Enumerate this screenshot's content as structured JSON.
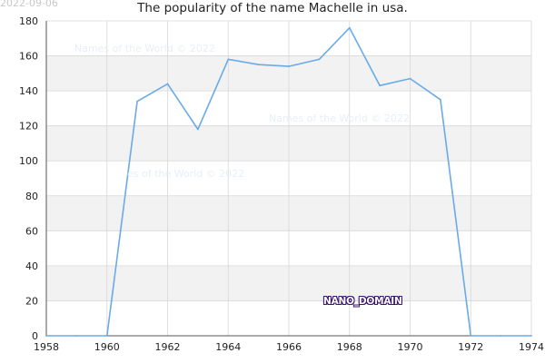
{
  "date_stamp": "2022-09-06",
  "watermarks": [
    "Names of the World © 2022",
    "Names of the World © 2022",
    "es of the World © 2022"
  ],
  "badge": "NANO_DOMAIN",
  "colors": {
    "line": "#6aaae8",
    "band": "#f2f2f2",
    "grid": "#d7d7d7",
    "axis": "#555555"
  },
  "chart_data": {
    "type": "line",
    "title": "The popularity of the name Machelle in usa.",
    "xlabel": "",
    "ylabel": "",
    "xlim": [
      1958,
      1974
    ],
    "ylim": [
      0,
      180
    ],
    "x_ticks": [
      1958,
      1960,
      1962,
      1964,
      1966,
      1968,
      1970,
      1972,
      1974
    ],
    "y_ticks": [
      0,
      20,
      40,
      60,
      80,
      100,
      120,
      140,
      160,
      180
    ],
    "grid": true,
    "legend": "none",
    "series": [
      {
        "x": [
          1958,
          1959,
          1960,
          1961,
          1962,
          1963,
          1964,
          1965,
          1966,
          1967,
          1968,
          1969,
          1970,
          1971,
          1972,
          1973,
          1974
        ],
        "y": [
          0,
          0,
          0,
          134,
          144,
          118,
          158,
          155,
          154,
          158,
          176,
          143,
          147,
          135,
          0,
          0,
          0
        ]
      }
    ]
  }
}
